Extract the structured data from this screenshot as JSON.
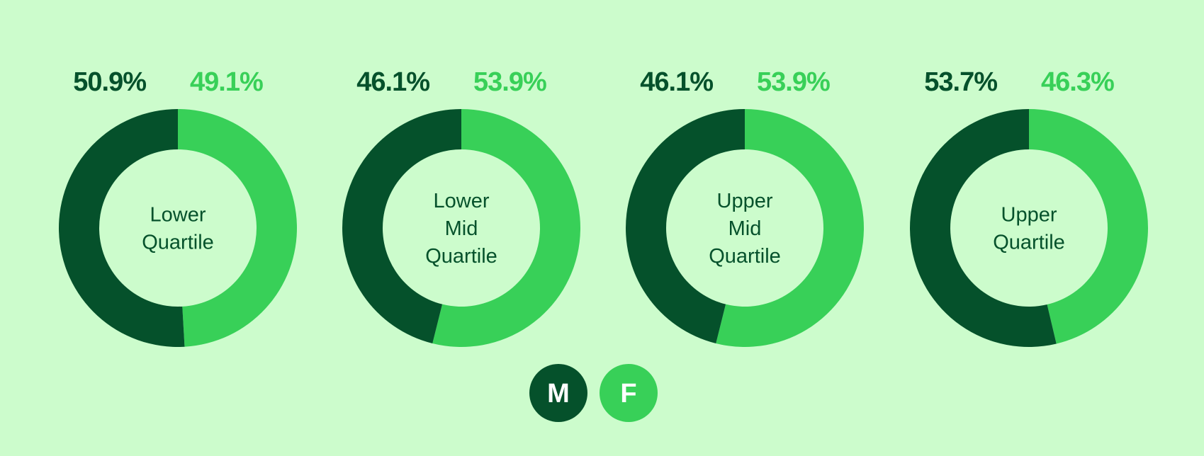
{
  "chart_data": [
    {
      "type": "donut",
      "title": "Lower Quartile",
      "values": [
        50.9,
        49.1
      ],
      "value_labels": [
        "50.9%",
        "49.1%"
      ]
    },
    {
      "type": "donut",
      "title": "Lower Mid Quartile",
      "values": [
        46.1,
        53.9
      ],
      "value_labels": [
        "46.1%",
        "53.9%"
      ]
    },
    {
      "type": "donut",
      "title": "Upper Mid Quartile",
      "values": [
        46.1,
        53.9
      ],
      "value_labels": [
        "46.1%",
        "53.9%"
      ]
    },
    {
      "type": "donut",
      "title": "Upper Quartile",
      "values": [
        53.7,
        46.3
      ],
      "value_labels": [
        "53.7%",
        "46.3%"
      ]
    }
  ],
  "legend": [
    {
      "name": "M",
      "color": "#05512b"
    },
    {
      "name": "F",
      "color": "#38d058"
    }
  ]
}
